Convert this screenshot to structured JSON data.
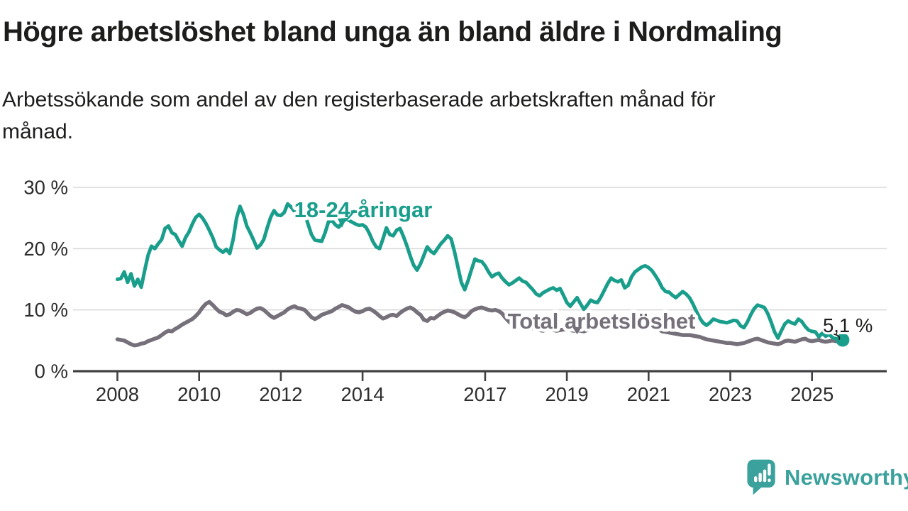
{
  "header": {
    "title": "Högre arbetslöshet bland unga än bland äldre i Nordmaling",
    "subtitle": "Arbetssökande som andel av den registerbaserade arbetskraften månad för månad.",
    "subtitle_lines": [
      "Arbetssökande som andel av den registerbaserade arbetskraften månad för",
      "månad."
    ]
  },
  "chart_data": {
    "type": "line",
    "unit": "%",
    "frequency": "monthly",
    "x_start": "2008-01",
    "x_end": "2025-10",
    "ylim": [
      0,
      30
    ],
    "grid": "horizontal",
    "y_ticks": [
      {
        "value": 0,
        "label": "0 %"
      },
      {
        "value": 10,
        "label": "10 %"
      },
      {
        "value": 20,
        "label": "20 %"
      },
      {
        "value": 30,
        "label": "30 %"
      }
    ],
    "x_ticks": [
      {
        "year": 2008,
        "label": "2008"
      },
      {
        "year": 2010,
        "label": "2010"
      },
      {
        "year": 2012,
        "label": "2012"
      },
      {
        "year": 2014,
        "label": "2014"
      },
      {
        "year": 2017,
        "label": "2017"
      },
      {
        "year": 2019,
        "label": "2019"
      },
      {
        "year": 2021,
        "label": "2021"
      },
      {
        "year": 2023,
        "label": "2023"
      },
      {
        "year": 2025,
        "label": "2025"
      }
    ],
    "series": [
      {
        "name": "18-24-åringar",
        "color": "#1a9e8c",
        "values": [
          15.0,
          15.1,
          16.2,
          14.5,
          15.9,
          13.9,
          15.0,
          13.7,
          16.4,
          18.9,
          20.4,
          20.0,
          20.8,
          21.5,
          23.3,
          23.7,
          22.6,
          22.3,
          21.3,
          20.4,
          21.8,
          22.7,
          24.0,
          25.1,
          25.6,
          25.0,
          24.1,
          23.0,
          21.8,
          20.3,
          19.8,
          19.4,
          19.9,
          19.2,
          21.5,
          25.0,
          26.9,
          25.6,
          23.7,
          22.6,
          21.4,
          20.1,
          20.6,
          21.5,
          23.4,
          25.1,
          26.2,
          25.5,
          25.4,
          25.9,
          27.3,
          26.8,
          26.1,
          26.0,
          25.9,
          25.7,
          24.0,
          22.3,
          21.4,
          21.3,
          21.2,
          22.6,
          24.4,
          24.6,
          23.9,
          23.5,
          24.2,
          25.0,
          24.6,
          24.3,
          24.0,
          23.8,
          23.9,
          23.5,
          22.5,
          21.2,
          20.3,
          20.0,
          21.6,
          23.4,
          22.3,
          22.1,
          23.0,
          23.3,
          22.0,
          20.5,
          18.8,
          17.3,
          16.5,
          17.5,
          18.9,
          20.3,
          19.6,
          19.2,
          20.0,
          20.8,
          21.4,
          22.1,
          21.6,
          19.5,
          17.0,
          14.5,
          13.3,
          14.8,
          16.6,
          18.3,
          18.0,
          17.9,
          17.2,
          16.2,
          15.4,
          15.8,
          16.0,
          15.2,
          14.6,
          14.1,
          14.4,
          14.8,
          15.2,
          14.7,
          14.5,
          13.9,
          13.3,
          12.6,
          12.3,
          12.8,
          13.1,
          13.4,
          13.6,
          13.2,
          13.5,
          12.4,
          11.2,
          10.6,
          11.3,
          12.0,
          11.0,
          10.1,
          10.8,
          11.6,
          11.3,
          11.2,
          12.1,
          13.2,
          14.3,
          15.2,
          14.8,
          14.6,
          14.9,
          13.6,
          14.0,
          15.4,
          16.2,
          16.6,
          17.0,
          17.2,
          16.9,
          16.4,
          15.6,
          14.7,
          13.6,
          13.0,
          12.9,
          12.4,
          12.0,
          12.5,
          13.0,
          12.6,
          12.0,
          11.0,
          9.8,
          8.7,
          7.9,
          7.5,
          7.9,
          8.5,
          8.3,
          8.1,
          8.0,
          7.9,
          8.1,
          8.3,
          8.2,
          7.4,
          7.1,
          8.0,
          9.2,
          10.2,
          10.8,
          10.6,
          10.4,
          9.4,
          8.0,
          6.4,
          5.4,
          6.6,
          7.7,
          8.2,
          7.9,
          7.7,
          8.5,
          8.1,
          7.3,
          6.7,
          6.5,
          6.4,
          5.6,
          6.2,
          5.7,
          6.0,
          5.5,
          5.3,
          5.0,
          5.1
        ]
      },
      {
        "name": "Total arbetslöshet",
        "color": "#75707a",
        "values": [
          5.2,
          5.1,
          5.0,
          4.7,
          4.4,
          4.2,
          4.3,
          4.5,
          4.6,
          4.9,
          5.1,
          5.3,
          5.5,
          5.9,
          6.3,
          6.6,
          6.5,
          6.9,
          7.2,
          7.6,
          7.9,
          8.2,
          8.5,
          9.0,
          9.6,
          10.4,
          11.0,
          11.3,
          10.8,
          10.2,
          9.7,
          9.5,
          9.1,
          9.3,
          9.7,
          10.0,
          9.9,
          9.6,
          9.3,
          9.5,
          9.9,
          10.2,
          10.3,
          10.0,
          9.5,
          9.0,
          8.7,
          9.0,
          9.3,
          9.6,
          10.1,
          10.4,
          10.6,
          10.3,
          10.2,
          10.0,
          9.4,
          8.8,
          8.5,
          8.8,
          9.2,
          9.4,
          9.6,
          9.8,
          10.2,
          10.5,
          10.8,
          10.6,
          10.4,
          10.0,
          9.7,
          9.6,
          9.8,
          10.1,
          10.2,
          9.9,
          9.5,
          9.0,
          8.6,
          8.8,
          9.1,
          9.2,
          9.0,
          9.5,
          9.9,
          10.2,
          10.4,
          10.1,
          9.6,
          9.2,
          8.4,
          8.2,
          8.7,
          8.6,
          9.0,
          9.4,
          9.7,
          9.9,
          9.8,
          9.6,
          9.3,
          9.0,
          8.8,
          9.2,
          9.8,
          10.1,
          10.3,
          10.4,
          10.2,
          10.0,
          9.9,
          10.0,
          9.8,
          9.4,
          8.7,
          8.1,
          7.6,
          7.3,
          7.2,
          7.4,
          7.3,
          7.1,
          7.0,
          6.9,
          6.7,
          6.6,
          6.8,
          6.9,
          6.7,
          6.6,
          6.7,
          6.8,
          6.8,
          6.7,
          6.6,
          6.7,
          6.6,
          6.5,
          6.7,
          6.8,
          6.9,
          7.0,
          7.1,
          7.3,
          7.5,
          7.7,
          7.9,
          8.2,
          8.3,
          8.2,
          8.1,
          8.0,
          7.9,
          7.8,
          7.7,
          7.6,
          7.5,
          7.3,
          7.1,
          6.8,
          6.5,
          6.4,
          6.3,
          6.2,
          6.1,
          6.0,
          5.9,
          5.9,
          5.9,
          5.8,
          5.7,
          5.6,
          5.4,
          5.2,
          5.1,
          5.0,
          4.9,
          4.8,
          4.7,
          4.6,
          4.6,
          4.5,
          4.4,
          4.5,
          4.6,
          4.8,
          5.0,
          5.2,
          5.3,
          5.1,
          4.9,
          4.7,
          4.6,
          4.5,
          4.4,
          4.6,
          4.9,
          5.0,
          4.9,
          4.8,
          5.0,
          5.2,
          5.3,
          5.0,
          4.9,
          5.0,
          5.1,
          4.9,
          4.8,
          4.9,
          5.0,
          4.9,
          4.8,
          4.8
        ]
      }
    ],
    "end_annotation": {
      "series": "18-24-åringar",
      "label": "5,1 %",
      "value": 5.1
    },
    "axis_color": "#414042",
    "gridline_color": "#d8d8d8",
    "tick_label_color": "#2e2e2e"
  },
  "branding": {
    "name": "Newsworthy",
    "color": "#3aa19c"
  }
}
